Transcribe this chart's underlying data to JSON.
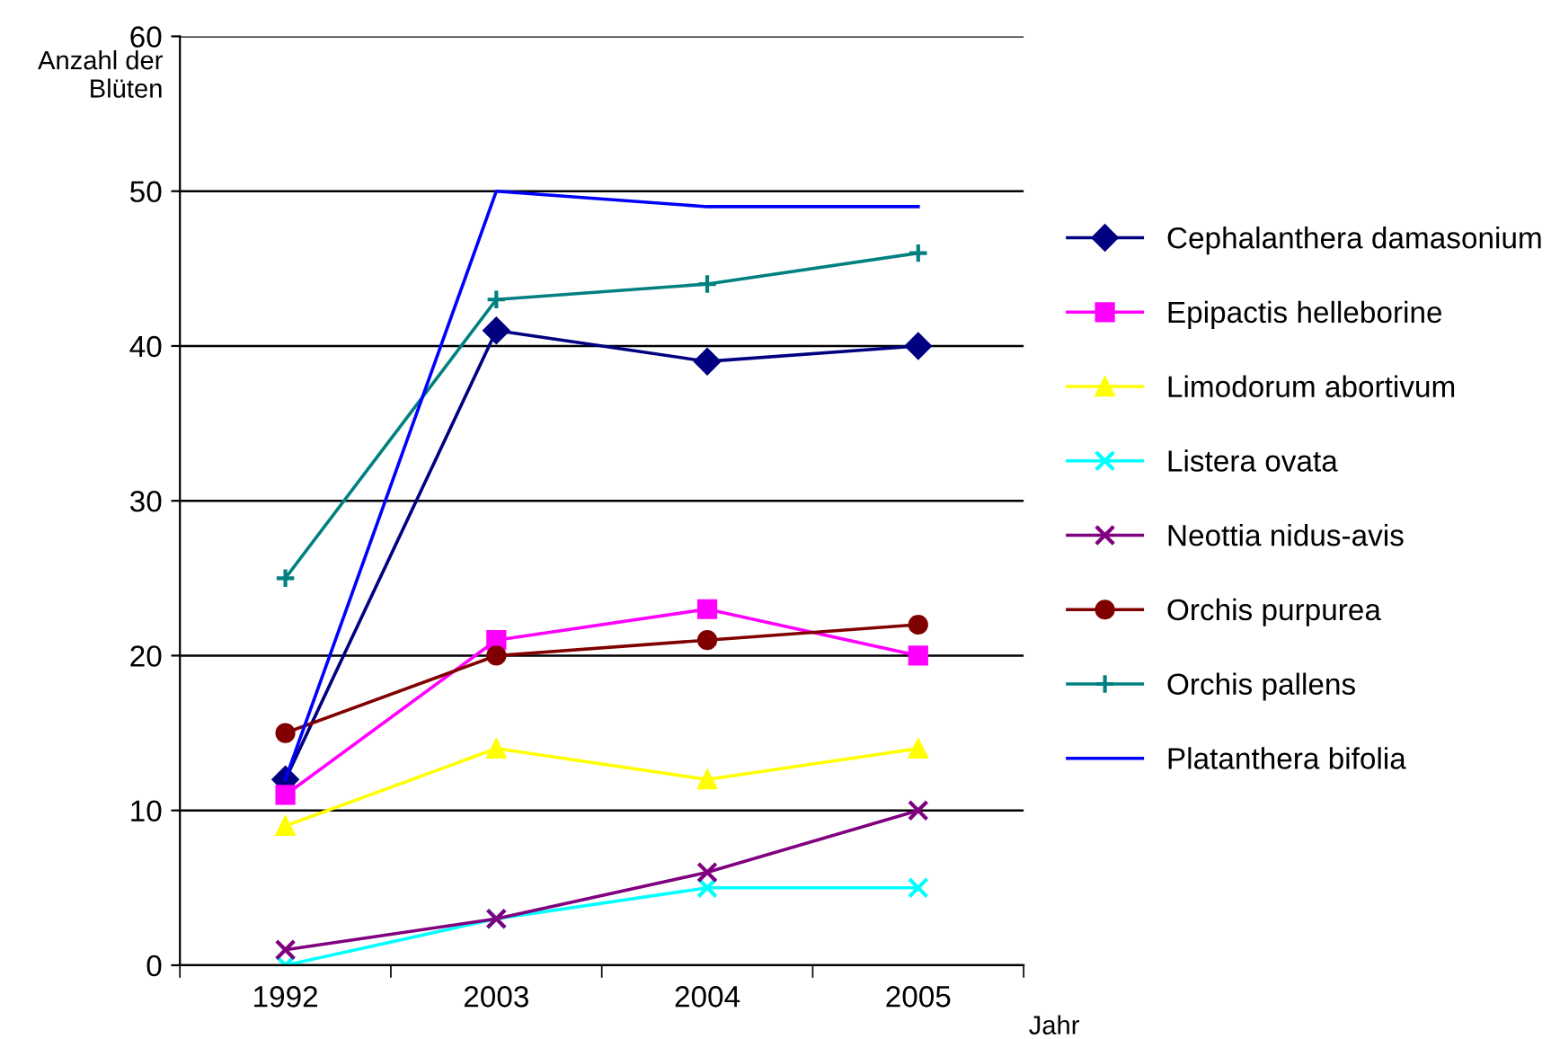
{
  "chart_data": {
    "type": "line",
    "xlabel": "Jahr",
    "ylabel": "Anzahl der Blüten",
    "categories": [
      "1992",
      "2003",
      "2004",
      "2005"
    ],
    "ylim": [
      0,
      60
    ],
    "yticks": [
      0,
      10,
      20,
      30,
      40,
      50,
      60
    ],
    "grid": "y",
    "legend": "right",
    "series": [
      {
        "name": "Cephalanthera damasonium",
        "color": "#000080",
        "marker": "diamond",
        "values": [
          12,
          41,
          39,
          40
        ]
      },
      {
        "name": "Epipactis helleborine",
        "color": "#ff00ff",
        "marker": "square",
        "values": [
          11,
          21,
          23,
          20
        ]
      },
      {
        "name": "Limodorum abortivum",
        "color": "#ffff00",
        "marker": "triangle",
        "values": [
          9,
          14,
          12,
          14
        ]
      },
      {
        "name": "Listera ovata",
        "color": "#00ffff",
        "marker": "cross",
        "values": [
          0,
          3,
          5,
          5
        ]
      },
      {
        "name": "Neottia nidus-avis",
        "color": "#800080",
        "marker": "cross",
        "values": [
          1,
          3,
          6,
          10
        ]
      },
      {
        "name": "Orchis purpurea",
        "color": "#800000",
        "marker": "circle",
        "values": [
          15,
          20,
          21,
          22
        ]
      },
      {
        "name": "Orchis pallens",
        "color": "#008080",
        "marker": "plus",
        "values": [
          25,
          43,
          44,
          46
        ]
      },
      {
        "name": "Platanthera bifolia",
        "color": "#0000ff",
        "marker": "none",
        "values": [
          12,
          50,
          49,
          49
        ]
      }
    ]
  }
}
